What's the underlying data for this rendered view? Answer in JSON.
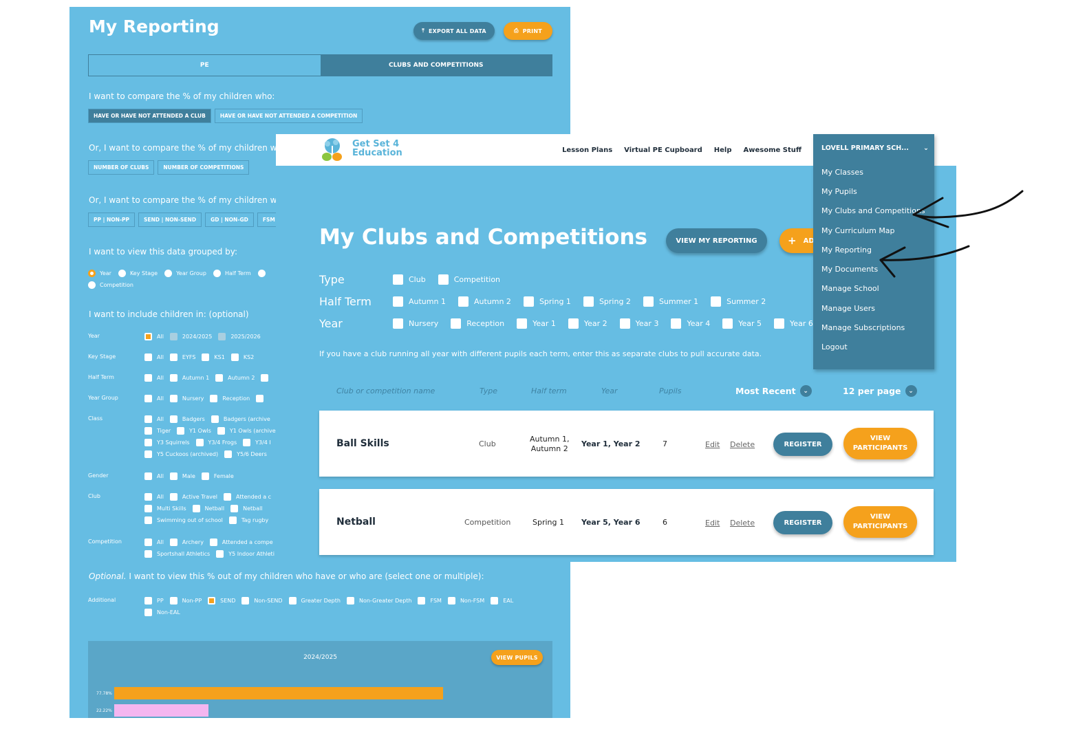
{
  "reporting": {
    "title": "My Reporting",
    "export_label": "EXPORT ALL DATA",
    "print_label": "PRINT",
    "tabs": [
      "PE",
      "CLUBS AND COMPETITIONS"
    ],
    "compare_q1": "I want to compare the % of my children who:",
    "compare_chips1": [
      "HAVE OR HAVE NOT ATTENDED A CLUB",
      "HAVE OR HAVE NOT ATTENDED A COMPETITION"
    ],
    "compare_q2": "Or, I want to compare the % of my children who",
    "compare_chips2": [
      "NUMBER OF CLUBS",
      "NUMBER OF COMPETITIONS"
    ],
    "compare_q3": "Or, I want to compare the % of my children who",
    "compare_chips3": [
      "PP | NON-PP",
      "SEND | NON-SEND",
      "GD | NON-GD",
      "FSM | NON-"
    ],
    "group_q": "I want to view this data grouped by:",
    "group_options": [
      "Year",
      "Key Stage",
      "Year Group",
      "Half Term",
      "Competition"
    ],
    "include_q": "I want to include children in: (optional)",
    "filters": {
      "year": {
        "label": "Year",
        "items": [
          "All",
          "2024/2025",
          "2025/2026"
        ]
      },
      "key_stage": {
        "label": "Key Stage",
        "items": [
          "All",
          "EYFS",
          "KS1",
          "KS2"
        ]
      },
      "half_term": {
        "label": "Half Term",
        "items": [
          "All",
          "Autumn 1",
          "Autumn 2"
        ]
      },
      "year_group": {
        "label": "Year Group",
        "items": [
          "All",
          "Nursery",
          "Reception"
        ]
      },
      "class": {
        "label": "Class",
        "items": [
          "All",
          "Badgers",
          "Badgers (archive",
          "Tiger",
          "Y1 Owls",
          "Y1 Owls (archive",
          "Y3 Squirrels",
          "Y3/4 Frogs",
          "Y3/4 I",
          "Y5 Cuckoos (archived)",
          "Y5/6 Deers"
        ]
      },
      "gender": {
        "label": "Gender",
        "items": [
          "All",
          "Male",
          "Female"
        ]
      },
      "club": {
        "label": "Club",
        "items": [
          "All",
          "Active Travel",
          "Attended a c",
          "Multi Skills",
          "Netball",
          "Netball",
          "Swimming out of school",
          "Tag rugby"
        ]
      },
      "competition": {
        "label": "Competition",
        "items": [
          "All",
          "Archery",
          "Attended a compe",
          "Sportshall Athletics",
          "Y5 Indoor Athleti"
        ]
      }
    },
    "optional_em": "Optional.",
    "optional_text": " I want to view this % out of my children who have or who are (select one or multiple):",
    "additional": {
      "label": "Additional",
      "items": [
        "PP",
        "Non-PP",
        "SEND",
        "Non-SEND",
        "Greater Depth",
        "Non-Greater Depth",
        "FSM",
        "Non-FSM",
        "EAL",
        "Non-EAL"
      ]
    },
    "view_pupils_label": "VIEW PUPILS",
    "colors": {
      "panel": "#66bde3",
      "dark": "#3f7f9c",
      "orange": "#f5a11c",
      "pink": "#f4b6f0"
    }
  },
  "chart_data": {
    "type": "bar",
    "title": "2024/2025",
    "orientation": "horizontal",
    "categories": [
      "",
      ""
    ],
    "values": [
      77.78,
      22.22
    ],
    "value_labels": [
      "77.78%",
      "22.22%"
    ],
    "colors": [
      "#f5a11c",
      "#f4b6f0"
    ],
    "xlim": [
      0,
      100
    ]
  },
  "navbar": {
    "logo_line1": "Get Set 4",
    "logo_line2": "Education",
    "links": [
      "Lesson Plans",
      "Virtual PE Cupboard",
      "Help",
      "Awesome Stuff"
    ]
  },
  "menu": {
    "school": "LOVELL PRIMARY SCH...",
    "items": [
      "My Classes",
      "My Pupils",
      "My Clubs and Competitions",
      "My Curriculum Map",
      "My Reporting",
      "My Documents",
      "Manage School",
      "Manage Users",
      "Manage Subscriptions",
      "Logout"
    ]
  },
  "clubs": {
    "title": "My Clubs and Competitions",
    "view_reporting_label": "VIEW MY REPORTING",
    "add_label": "AD",
    "type_label": "Type",
    "type_items": [
      "Club",
      "Competition"
    ],
    "half_label": "Half Term",
    "half_items": [
      "Autumn 1",
      "Autumn 2",
      "Spring 1",
      "Spring 2",
      "Summer 1",
      "Summer 2"
    ],
    "year_label": "Year",
    "year_items": [
      "Nursery",
      "Reception",
      "Year 1",
      "Year 2",
      "Year 3",
      "Year 4",
      "Year 5",
      "Year 6"
    ],
    "note": "If you have a club running all year with different pupils each term, enter this as separate clubs to pull accurate data.",
    "columns": [
      "Club or competition name",
      "Type",
      "Half term",
      "Year",
      "Pupils"
    ],
    "sort_label": "Most Recent",
    "per_page_label": "12 per page",
    "rows": [
      {
        "name": "Ball Skills",
        "type": "Club",
        "half1": "Autumn 1,",
        "half2": "Autumn 2",
        "year": "Year 1, Year 2",
        "pupils": "7",
        "edit": "Edit",
        "delete": "Delete",
        "register": "REGISTER",
        "view1": "VIEW",
        "view2": "PARTICIPANTS"
      },
      {
        "name": "Netball",
        "type": "Competition",
        "half1": "Spring 1",
        "half2": "",
        "year": "Year 5, Year 6",
        "pupils": "6",
        "edit": "Edit",
        "delete": "Delete",
        "register": "REGISTER",
        "view1": "VIEW",
        "view2": "PARTICIPANTS"
      }
    ]
  }
}
